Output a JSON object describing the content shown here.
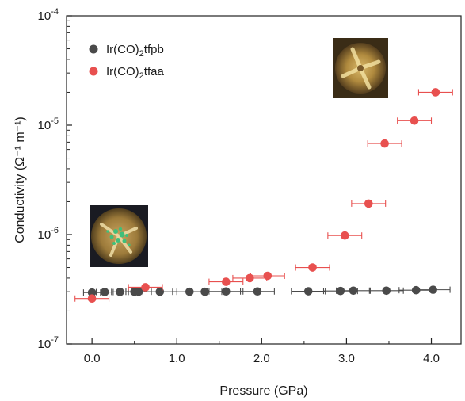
{
  "chart_data": {
    "type": "scatter",
    "xlabel": "Pressure (GPa)",
    "ylabel": "Conductivity (Ω⁻¹ m⁻¹)",
    "xlim": [
      -0.3,
      4.35
    ],
    "ylim_log10": [
      -7,
      -4
    ],
    "y_scale": "log",
    "x_ticks": [
      0.0,
      1.0,
      2.0,
      3.0,
      4.0
    ],
    "x_tick_labels": [
      "0.0",
      "1.0",
      "2.0",
      "3.0",
      "4.0"
    ],
    "y_ticks": [
      {
        "base": "10",
        "exp": "-7",
        "value": 1e-07
      },
      {
        "base": "10",
        "exp": "-6",
        "value": 1e-06
      },
      {
        "base": "10",
        "exp": "-5",
        "value": 1e-05
      },
      {
        "base": "10",
        "exp": "-4",
        "value": 0.0001
      }
    ],
    "grid": false,
    "legend_placement": "top-left",
    "series": [
      {
        "name": "Ir(CO)2tfpb",
        "name_parts": {
          "pre": "Ir(CO)",
          "sub": "2",
          "post": "tfpb"
        },
        "color": "#4a4a4a",
        "points": [
          {
            "x": 0.0,
            "y": 2.95e-07,
            "xerr": 0.1
          },
          {
            "x": 0.15,
            "y": 2.98e-07,
            "xerr": 0.1
          },
          {
            "x": 0.33,
            "y": 2.99e-07,
            "xerr": 0.1
          },
          {
            "x": 0.5,
            "y": 3e-07,
            "xerr": 0.1
          },
          {
            "x": 0.55,
            "y": 3e-07,
            "xerr": 0.15
          },
          {
            "x": 0.8,
            "y": 3e-07,
            "xerr": 0.2
          },
          {
            "x": 1.15,
            "y": 3e-07,
            "xerr": 0.2
          },
          {
            "x": 1.33,
            "y": 3e-07,
            "xerr": 0.2
          },
          {
            "x": 1.58,
            "y": 3.02e-07,
            "xerr": 0.2
          },
          {
            "x": 1.95,
            "y": 3.02e-07,
            "xerr": 0.2
          },
          {
            "x": 2.55,
            "y": 3.03e-07,
            "xerr": 0.2
          },
          {
            "x": 2.93,
            "y": 3.05e-07,
            "xerr": 0.2
          },
          {
            "x": 3.08,
            "y": 3.07e-07,
            "xerr": 0.2
          },
          {
            "x": 3.47,
            "y": 3.07e-07,
            "xerr": 0.2
          },
          {
            "x": 3.82,
            "y": 3.1e-07,
            "xerr": 0.2
          },
          {
            "x": 4.02,
            "y": 3.13e-07,
            "xerr": 0.2
          }
        ]
      },
      {
        "name": "Ir(CO)2tfaa",
        "name_parts": {
          "pre": "Ir(CO)",
          "sub": "2",
          "post": "tfaa"
        },
        "color": "#e8504f",
        "points": [
          {
            "x": 0.0,
            "y": 2.6e-07,
            "xerr": 0.2
          },
          {
            "x": 0.63,
            "y": 3.3e-07,
            "xerr": 0.2
          },
          {
            "x": 1.58,
            "y": 3.7e-07,
            "xerr": 0.2
          },
          {
            "x": 1.86,
            "y": 4e-07,
            "xerr": 0.2
          },
          {
            "x": 2.07,
            "y": 4.2e-07,
            "xerr": 0.2
          },
          {
            "x": 2.6,
            "y": 5e-07,
            "xerr": 0.2
          },
          {
            "x": 2.98,
            "y": 9.8e-07,
            "xerr": 0.2
          },
          {
            "x": 3.26,
            "y": 1.92e-06,
            "xerr": 0.2
          },
          {
            "x": 3.45,
            "y": 6.8e-06,
            "xerr": 0.2
          },
          {
            "x": 3.8,
            "y": 1.1e-05,
            "xerr": 0.2
          },
          {
            "x": 4.05,
            "y": 2e-05,
            "xerr": 0.2
          }
        ]
      }
    ],
    "insets": [
      {
        "name": "diamond-anvil-cell-photo-red",
        "description_icon": "cell-photo-icon"
      },
      {
        "name": "diamond-anvil-cell-photo-green",
        "description_icon": "cell-photo-icon"
      }
    ]
  }
}
